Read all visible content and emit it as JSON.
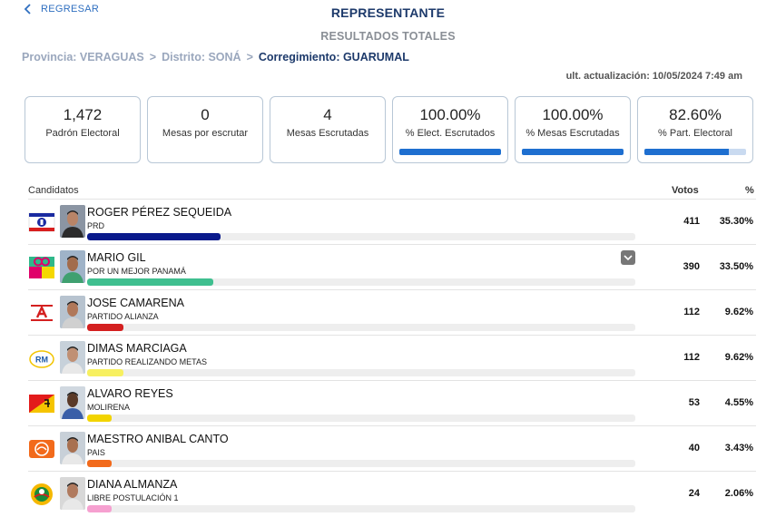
{
  "header": {
    "back_label": "REGRESAR",
    "title": "REPRESENTANTE",
    "subtitle": "RESULTADOS TOTALES"
  },
  "breadcrumb": {
    "provincia": "Provincia: VERAGUAS",
    "distrito": "Distrito: SONÁ",
    "corregimiento": "Corregimiento: GUARUMAL",
    "separator": ">"
  },
  "updated": "ult. actualización: 10/05/2024 7:49 am",
  "stats": [
    {
      "value": "1,472",
      "label": "Padrón Electoral"
    },
    {
      "value": "0",
      "label": "Mesas por escrutar"
    },
    {
      "value": "4",
      "label": "Mesas Escrutadas"
    },
    {
      "value": "100.00%",
      "label": "% Elect. Escrutados",
      "progress": 100
    },
    {
      "value": "100.00%",
      "label": "% Mesas Escrutadas",
      "progress": 100
    },
    {
      "value": "82.60%",
      "label": "% Part. Electoral",
      "progress": 82.6
    }
  ],
  "table": {
    "col_candidates": "Candidatos",
    "col_votes": "Votos",
    "col_pct": "%"
  },
  "candidates": [
    {
      "name": "ROGER PÉREZ SEQUEIDA",
      "party": "PRD",
      "votes": "411",
      "pct": "35.30%",
      "share": 35.3,
      "color": "#0a1a8c",
      "logo": "prd-logo-icon",
      "logo_colors": [
        "#ffffff",
        "#1a2aa0",
        "#d81e1e"
      ]
    },
    {
      "name": "MARIO GIL",
      "party": "POR UN MEJOR PANAMÁ",
      "votes": "390",
      "pct": "33.50%",
      "share": 33.5,
      "color": "#3fbf8f",
      "logo": "pump-logo-icon",
      "logo_colors": [
        "#2fb88a",
        "#e0006a",
        "#f5d800"
      ]
    },
    {
      "name": "JOSE CAMARENA",
      "party": "PARTIDO ALIANZA",
      "votes": "112",
      "pct": "9.62%",
      "share": 9.62,
      "color": "#d42020",
      "logo": "alianza-logo-icon",
      "logo_colors": [
        "#ffffff",
        "#d42020",
        "#d42020"
      ]
    },
    {
      "name": "DIMAS MARCIAGA",
      "party": "PARTIDO REALIZANDO METAS",
      "votes": "112",
      "pct": "9.62%",
      "share": 9.62,
      "color": "#f7f060",
      "logo": "rm-logo-icon",
      "logo_colors": [
        "#ffffff",
        "#1d5aa8",
        "#f2c400"
      ]
    },
    {
      "name": "ALVARO REYES",
      "party": "MOLIRENA",
      "votes": "53",
      "pct": "4.55%",
      "share": 4.55,
      "color": "#f2d400",
      "logo": "molirena-logo-icon",
      "logo_colors": [
        "#e31b1b",
        "#f5c400",
        "#111111"
      ]
    },
    {
      "name": "MAESTRO ANIBAL CANTO",
      "party": "PAIS",
      "votes": "40",
      "pct": "3.43%",
      "share": 3.43,
      "color": "#f26a1b",
      "logo": "pais-logo-icon",
      "logo_colors": [
        "#f26a1b",
        "#ffffff",
        "#f26a1b"
      ]
    },
    {
      "name": "DIANA ALMANZA",
      "party": "LIBRE POSTULACIÓN 1",
      "votes": "24",
      "pct": "2.06%",
      "share": 2.06,
      "color": "#f6a0d0",
      "logo": "libre-postulacion-logo-icon",
      "logo_colors": [
        "#f5b800",
        "#1b8a3a",
        "#d42020"
      ]
    }
  ]
}
